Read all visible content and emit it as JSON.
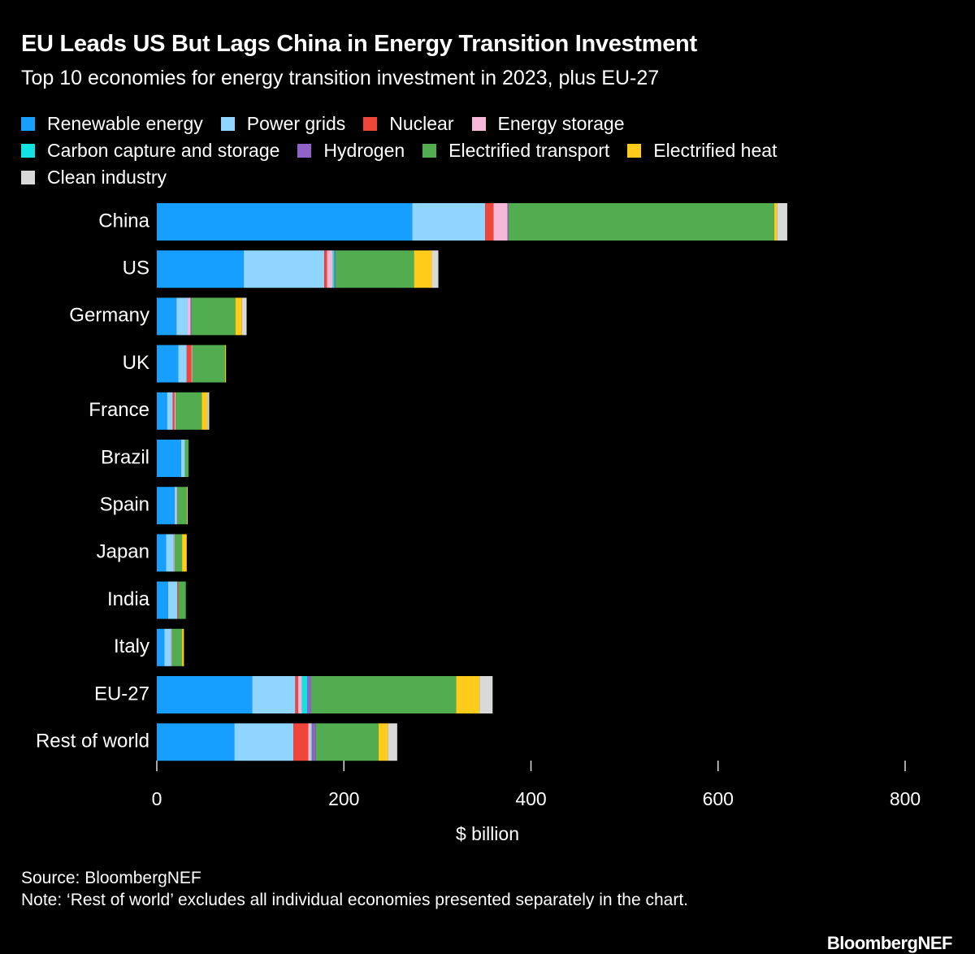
{
  "chart_data": {
    "type": "stacked-bar-horizontal",
    "title": "EU Leads US But Lags China in Energy Transition Investment",
    "subtitle": "Top 10 economies for energy transition investment in 2023, plus EU-27",
    "categories": [
      "China",
      "US",
      "Germany",
      "UK",
      "France",
      "Brazil",
      "Spain",
      "Japan",
      "India",
      "Italy",
      "EU-27",
      "Rest of world"
    ],
    "series": [
      {
        "name": "Renewable energy",
        "color": "#169fff",
        "values": [
          273,
          93,
          21,
          23,
          11,
          26,
          19,
          10,
          12,
          8,
          102,
          83
        ]
      },
      {
        "name": "Power grids",
        "color": "#8fd5ff",
        "values": [
          78,
          86,
          12,
          9,
          6,
          4,
          2,
          8,
          10,
          7,
          46,
          63
        ]
      },
      {
        "name": "Nuclear",
        "color": "#f0463a",
        "values": [
          9,
          3,
          0,
          5,
          2,
          0,
          0,
          0,
          1,
          0,
          3,
          16
        ]
      },
      {
        "name": "Energy storage",
        "color": "#f7b8d8",
        "values": [
          15,
          6,
          3,
          1,
          1,
          0,
          1,
          1,
          0,
          1,
          4,
          3
        ]
      },
      {
        "name": "Carbon capture and storage",
        "color": "#12e2e2",
        "values": [
          0,
          2,
          0,
          0,
          0,
          0,
          0,
          0,
          0,
          0,
          6,
          1
        ]
      },
      {
        "name": "Hydrogen",
        "color": "#9163c9",
        "values": [
          1,
          1,
          1,
          0,
          0,
          0,
          0,
          0,
          0,
          0,
          4,
          4
        ]
      },
      {
        "name": "Electrified transport",
        "color": "#51ad4f",
        "values": [
          284,
          84,
          47,
          35,
          28,
          4,
          10,
          8,
          8,
          11,
          155,
          67
        ]
      },
      {
        "name": "Electrified heat",
        "color": "#ffcc1b",
        "values": [
          3,
          19,
          7,
          1,
          6,
          0,
          1,
          5,
          0,
          2,
          25,
          10
        ]
      },
      {
        "name": "Clean industry",
        "color": "#d9d9d9",
        "values": [
          11,
          7,
          5,
          0,
          2,
          0,
          0,
          0,
          0,
          0,
          14,
          10
        ]
      }
    ],
    "xlim": [
      0,
      800
    ],
    "xticks": [
      0,
      200,
      400,
      600,
      800
    ],
    "x_label": "$ billion",
    "source": "Source: BloombergNEF",
    "note": "Note: ‘Rest of world’ excludes all individual economies presented separately in the chart.",
    "logo": "BloombergNEF"
  }
}
